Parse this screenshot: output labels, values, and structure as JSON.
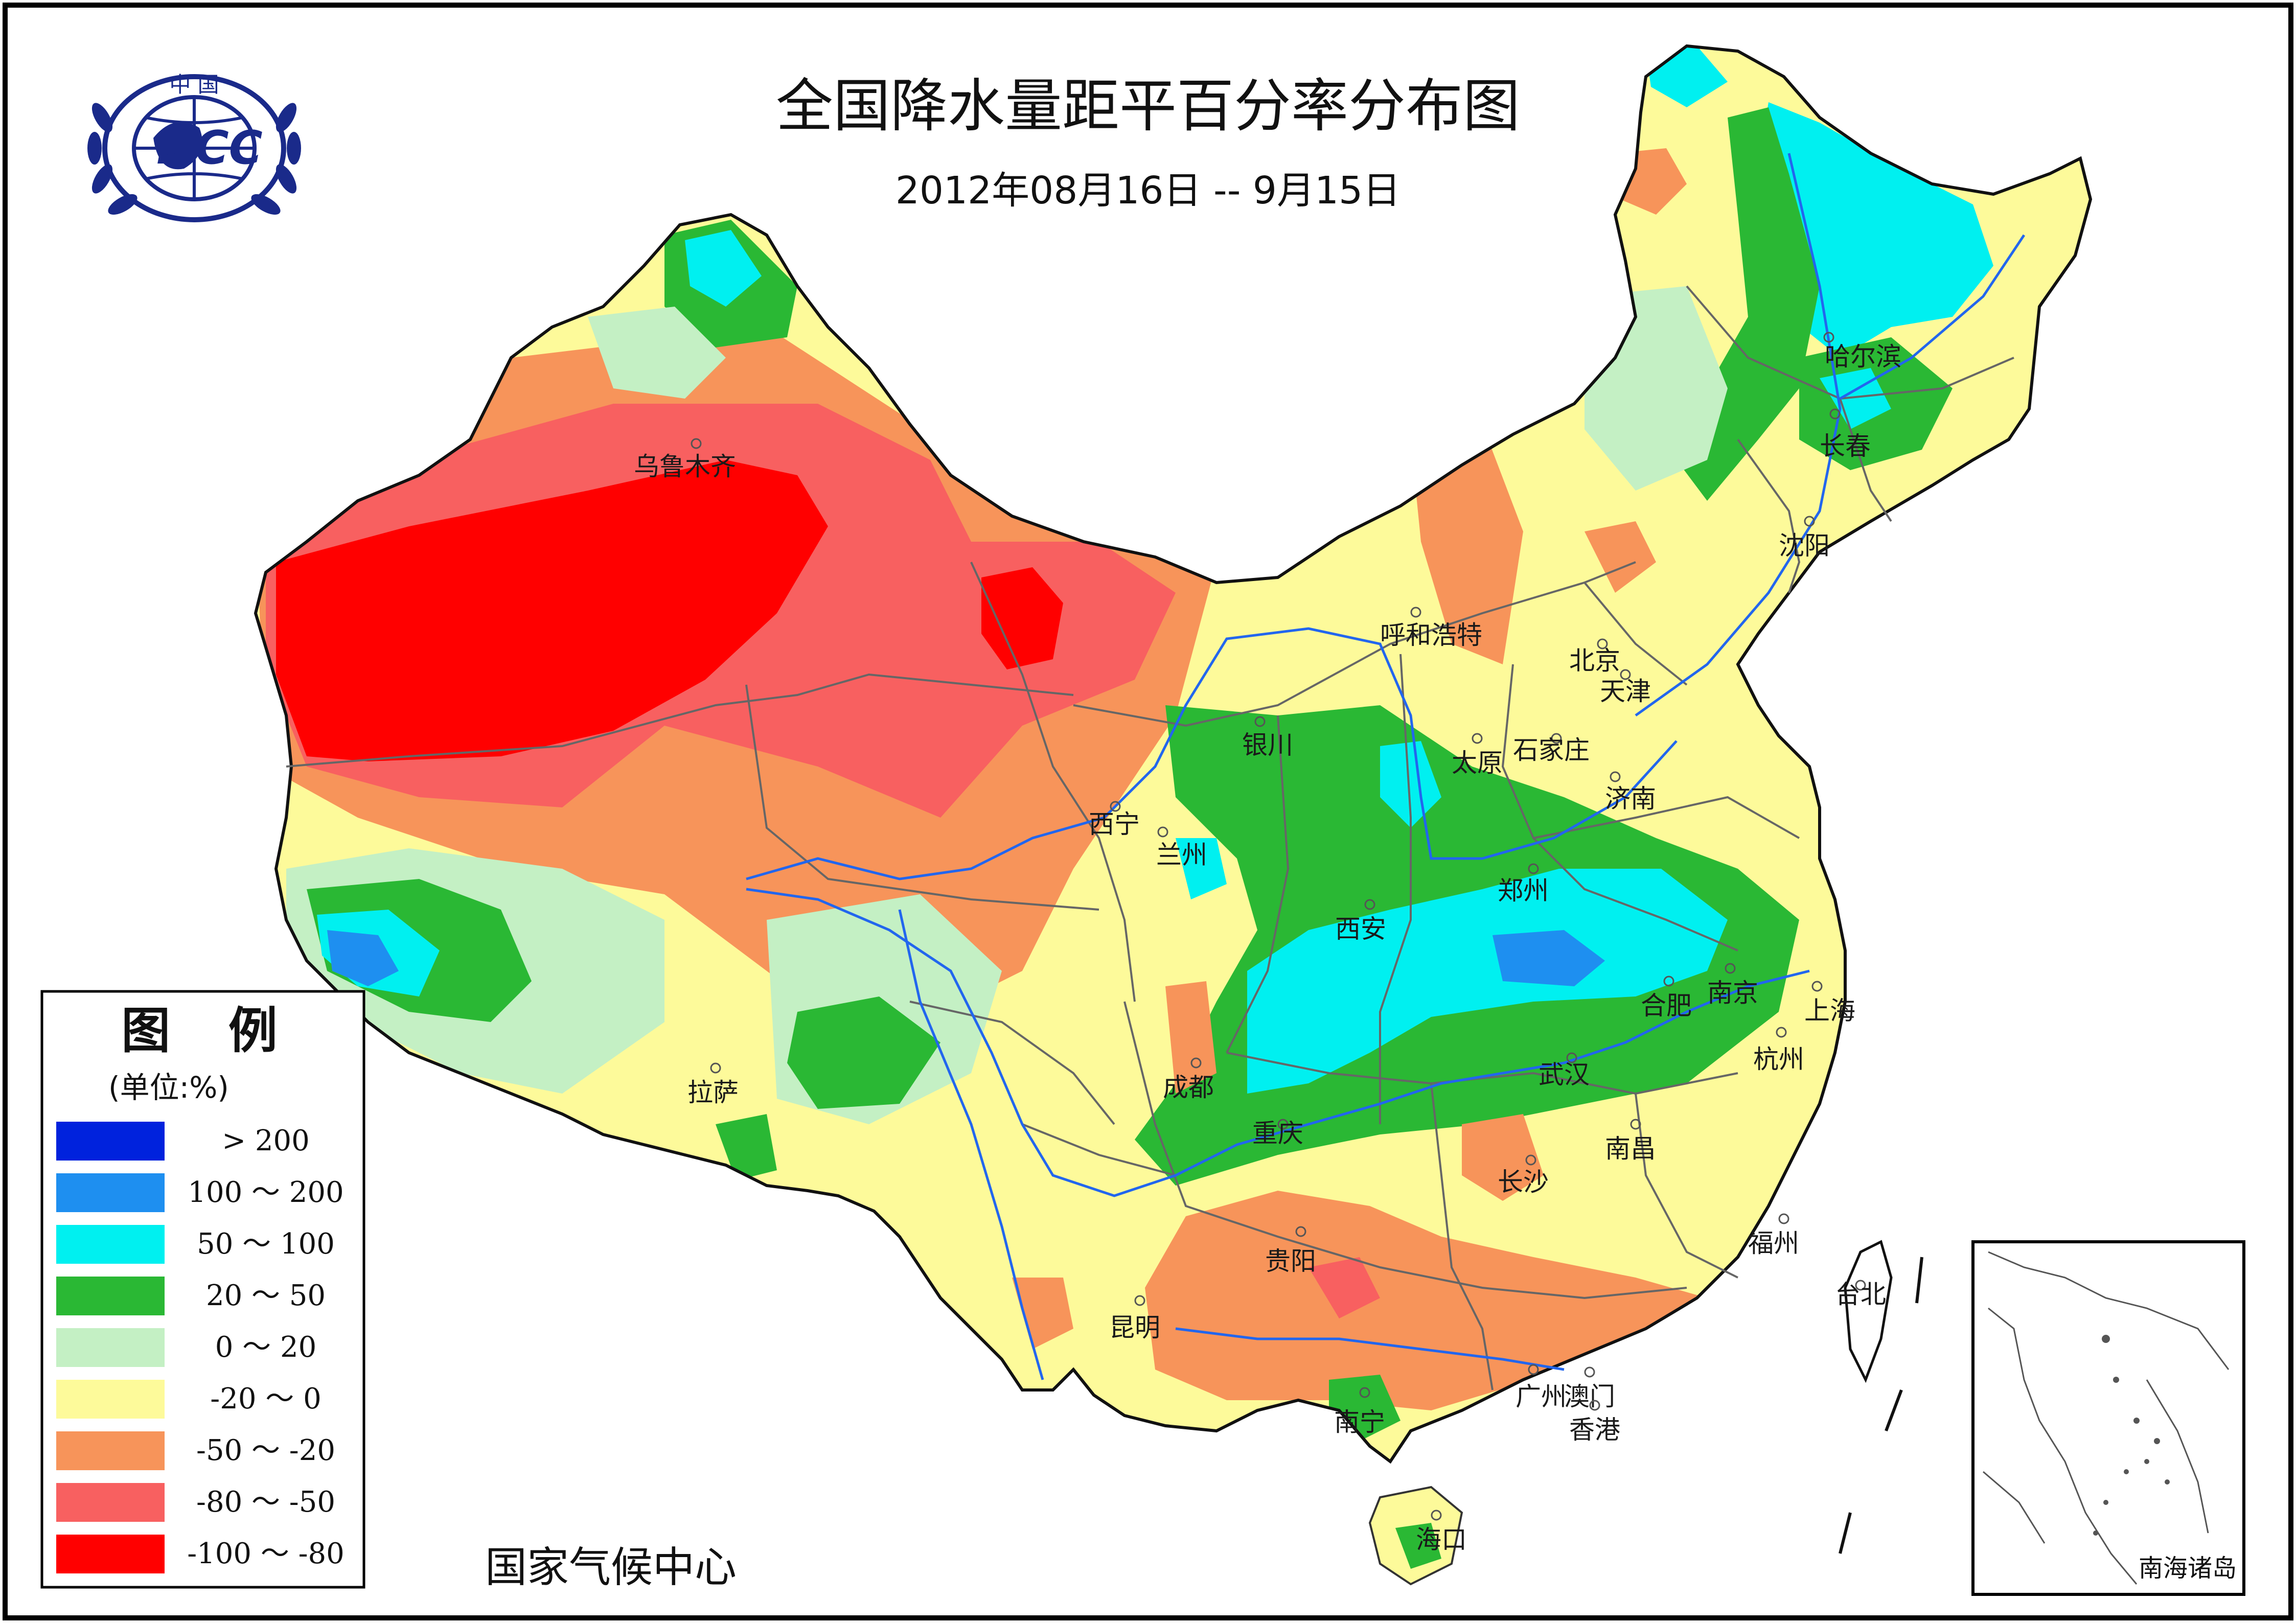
{
  "title": "全国降水量距平百分率分布图",
  "subtitle": "2012年08月16日 -- 9月15日",
  "logo": {
    "top_text": "中 国",
    "mark": "NCC",
    "icon": "wmo-laurel-globe-logo"
  },
  "footer": "国家气候中心",
  "inset_label": "南海诸岛",
  "legend": {
    "title": "图 例",
    "unit": "(单位:%)",
    "items": [
      {
        "color": "#0022dd",
        "label": "> 200"
      },
      {
        "color": "#1e8ff0",
        "label": "100 ～ 200"
      },
      {
        "color": "#00f0f0",
        "label": "50 ～ 100"
      },
      {
        "color": "#2ab834",
        "label": "20 ～ 50"
      },
      {
        "color": "#c4f0c4",
        "label": "0 ～ 20"
      },
      {
        "color": "#fdfa9a",
        "label": "-20 ～ 0"
      },
      {
        "color": "#f7945a",
        "label": "-50 ～ -20"
      },
      {
        "color": "#f86060",
        "label": "-80 ～ -50"
      },
      {
        "color": "#ff0000",
        "label": "-100 ～ -80"
      }
    ]
  },
  "cities": [
    "乌鲁木齐",
    "哈尔滨",
    "长春",
    "沈阳",
    "呼和浩特",
    "北京",
    "天津",
    "银川",
    "太原",
    "石家庄",
    "济南",
    "西宁",
    "兰州",
    "郑州",
    "西安",
    "南京",
    "合肥",
    "上海",
    "拉萨",
    "成都",
    "武汉",
    "杭州",
    "重庆",
    "南昌",
    "长沙",
    "福州",
    "贵阳",
    "台北",
    "昆明",
    "广州",
    "澳门",
    "香港",
    "南宁",
    "海口"
  ]
}
